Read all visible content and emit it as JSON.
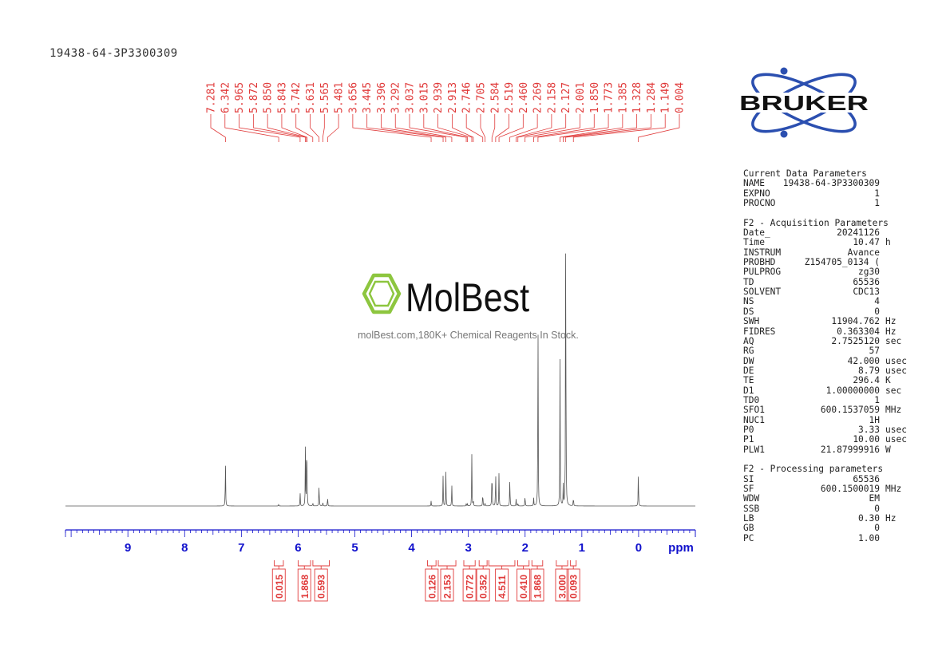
{
  "sample_title": "19438-64-3P3300309",
  "colors": {
    "peak_label": "#e03a3a",
    "axis": "#1111cc",
    "trace": "#555555",
    "brand_blue": "#2b4fb0",
    "watermark_green": "#8dc63f"
  },
  "logo": {
    "text": "BRUKER",
    "icon": "atom-orbits-icon"
  },
  "watermark": {
    "brand": "MolBest",
    "tagline": "molBest.com,180K+ Chemical Reagents In Stock.",
    "icon": "benzene-ring-icon"
  },
  "chart_data": {
    "type": "line",
    "title": "",
    "xlabel": "ppm",
    "ylabel": "",
    "x_reversed": true,
    "xlim": [
      10.1,
      -1.0
    ],
    "xticks": [
      9,
      8,
      7,
      6,
      5,
      4,
      3,
      2,
      1,
      0
    ],
    "minor_tick_step": 0.1,
    "peak_labels": [
      "7.281",
      "6.342",
      "5.965",
      "5.872",
      "5.850",
      "5.843",
      "5.742",
      "5.631",
      "5.565",
      "5.481",
      "3.656",
      "3.445",
      "3.396",
      "3.292",
      "3.037",
      "3.015",
      "2.939",
      "2.913",
      "2.746",
      "2.705",
      "2.584",
      "2.519",
      "2.460",
      "2.269",
      "2.158",
      "2.127",
      "2.001",
      "1.850",
      "1.773",
      "1.385",
      "1.328",
      "1.284",
      "1.149",
      "0.004"
    ],
    "peaks": [
      {
        "ppm": 7.281,
        "height": 0.145
      },
      {
        "ppm": 6.342,
        "height": 0.005
      },
      {
        "ppm": 5.965,
        "height": 0.04
      },
      {
        "ppm": 5.872,
        "height": 0.17
      },
      {
        "ppm": 5.85,
        "height": 0.13
      },
      {
        "ppm": 5.843,
        "height": 0.1
      },
      {
        "ppm": 5.742,
        "height": 0.012
      },
      {
        "ppm": 5.631,
        "height": 0.075
      },
      {
        "ppm": 5.565,
        "height": 0.012
      },
      {
        "ppm": 5.481,
        "height": 0.03
      },
      {
        "ppm": 3.656,
        "height": 0.015
      },
      {
        "ppm": 3.445,
        "height": 0.09
      },
      {
        "ppm": 3.396,
        "height": 0.1
      },
      {
        "ppm": 3.292,
        "height": 0.065
      },
      {
        "ppm": 3.037,
        "height": 0.007
      },
      {
        "ppm": 3.015,
        "height": 0.007
      },
      {
        "ppm": 2.939,
        "height": 0.15
      },
      {
        "ppm": 2.913,
        "height": 0.015
      },
      {
        "ppm": 2.746,
        "height": 0.045
      },
      {
        "ppm": 2.705,
        "height": 0.01
      },
      {
        "ppm": 2.584,
        "height": 0.13
      },
      {
        "ppm": 2.519,
        "height": 0.11
      },
      {
        "ppm": 2.46,
        "height": 0.1
      },
      {
        "ppm": 2.269,
        "height": 0.09
      },
      {
        "ppm": 2.158,
        "height": 0.02
      },
      {
        "ppm": 2.127,
        "height": 0.01
      },
      {
        "ppm": 2.001,
        "height": 0.035
      },
      {
        "ppm": 1.85,
        "height": 0.025
      },
      {
        "ppm": 1.773,
        "height": 0.59
      },
      {
        "ppm": 1.385,
        "height": 0.43
      },
      {
        "ppm": 1.328,
        "height": 0.06
      },
      {
        "ppm": 1.284,
        "height": 1.0
      },
      {
        "ppm": 1.149,
        "height": 0.03
      },
      {
        "ppm": 0.004,
        "height": 0.11
      }
    ],
    "integrals": [
      {
        "value": "0.015",
        "from": 6.42,
        "to": 6.26
      },
      {
        "value": "1.868",
        "from": 6.0,
        "to": 5.78
      },
      {
        "value": "0.593",
        "from": 5.74,
        "to": 5.45
      },
      {
        "value": "0.126",
        "from": 3.72,
        "to": 3.57
      },
      {
        "value": "2.153",
        "from": 3.53,
        "to": 3.22
      },
      {
        "value": "0.772",
        "from": 3.08,
        "to": 2.88
      },
      {
        "value": "0.352",
        "from": 2.81,
        "to": 2.67
      },
      {
        "value": "4.511",
        "from": 2.64,
        "to": 2.18
      },
      {
        "value": "0.410",
        "from": 2.13,
        "to": 1.93
      },
      {
        "value": "1.868",
        "from": 1.88,
        "to": 1.69
      },
      {
        "value": "3.000",
        "from": 1.45,
        "to": 1.25
      },
      {
        "value": "0.093",
        "from": 1.2,
        "to": 1.1
      }
    ]
  },
  "parameters": {
    "sections": [
      {
        "title": "Current Data Parameters",
        "rows": [
          {
            "key": "NAME",
            "value": "19438-64-3P3300309",
            "unit": ""
          },
          {
            "key": "EXPNO",
            "value": "1",
            "unit": ""
          },
          {
            "key": "PROCNO",
            "value": "1",
            "unit": ""
          }
        ]
      },
      {
        "title": "F2 - Acquisition Parameters",
        "rows": [
          {
            "key": "Date_",
            "value": "20241126",
            "unit": ""
          },
          {
            "key": "Time",
            "value": "10.47",
            "unit": "h"
          },
          {
            "key": "INSTRUM",
            "value": "Avance",
            "unit": ""
          },
          {
            "key": "PROBHD",
            "value": "Z154705_0134 (",
            "unit": ""
          },
          {
            "key": "PULPROG",
            "value": "zg30",
            "unit": ""
          },
          {
            "key": "TD",
            "value": "65536",
            "unit": ""
          },
          {
            "key": "SOLVENT",
            "value": "CDC13",
            "unit": ""
          },
          {
            "key": "NS",
            "value": "4",
            "unit": ""
          },
          {
            "key": "DS",
            "value": "0",
            "unit": ""
          },
          {
            "key": "SWH",
            "value": "11904.762",
            "unit": "Hz"
          },
          {
            "key": "FIDRES",
            "value": "0.363304",
            "unit": "Hz"
          },
          {
            "key": "AQ",
            "value": "2.7525120",
            "unit": "sec"
          },
          {
            "key": "RG",
            "value": "57",
            "unit": ""
          },
          {
            "key": "DW",
            "value": "42.000",
            "unit": "usec"
          },
          {
            "key": "DE",
            "value": "8.79",
            "unit": "usec"
          },
          {
            "key": "TE",
            "value": "296.4",
            "unit": "K"
          },
          {
            "key": "D1",
            "value": "1.00000000",
            "unit": "sec"
          },
          {
            "key": "TD0",
            "value": "1",
            "unit": ""
          },
          {
            "key": "SFO1",
            "value": "600.1537059",
            "unit": "MHz"
          },
          {
            "key": "NUC1",
            "value": "1H",
            "unit": ""
          },
          {
            "key": "P0",
            "value": "3.33",
            "unit": "usec"
          },
          {
            "key": "P1",
            "value": "10.00",
            "unit": "usec"
          },
          {
            "key": "PLW1",
            "value": "21.87999916",
            "unit": "W"
          }
        ]
      },
      {
        "title": "F2 - Processing parameters",
        "rows": [
          {
            "key": "SI",
            "value": "65536",
            "unit": ""
          },
          {
            "key": "SF",
            "value": "600.1500019",
            "unit": "MHz"
          },
          {
            "key": "WDW",
            "value": "EM",
            "unit": ""
          },
          {
            "key": "SSB",
            "value": "0",
            "unit": ""
          },
          {
            "key": "LB",
            "value": "0.30",
            "unit": "Hz"
          },
          {
            "key": "GB",
            "value": "0",
            "unit": ""
          },
          {
            "key": "PC",
            "value": "1.00",
            "unit": ""
          }
        ]
      }
    ]
  }
}
